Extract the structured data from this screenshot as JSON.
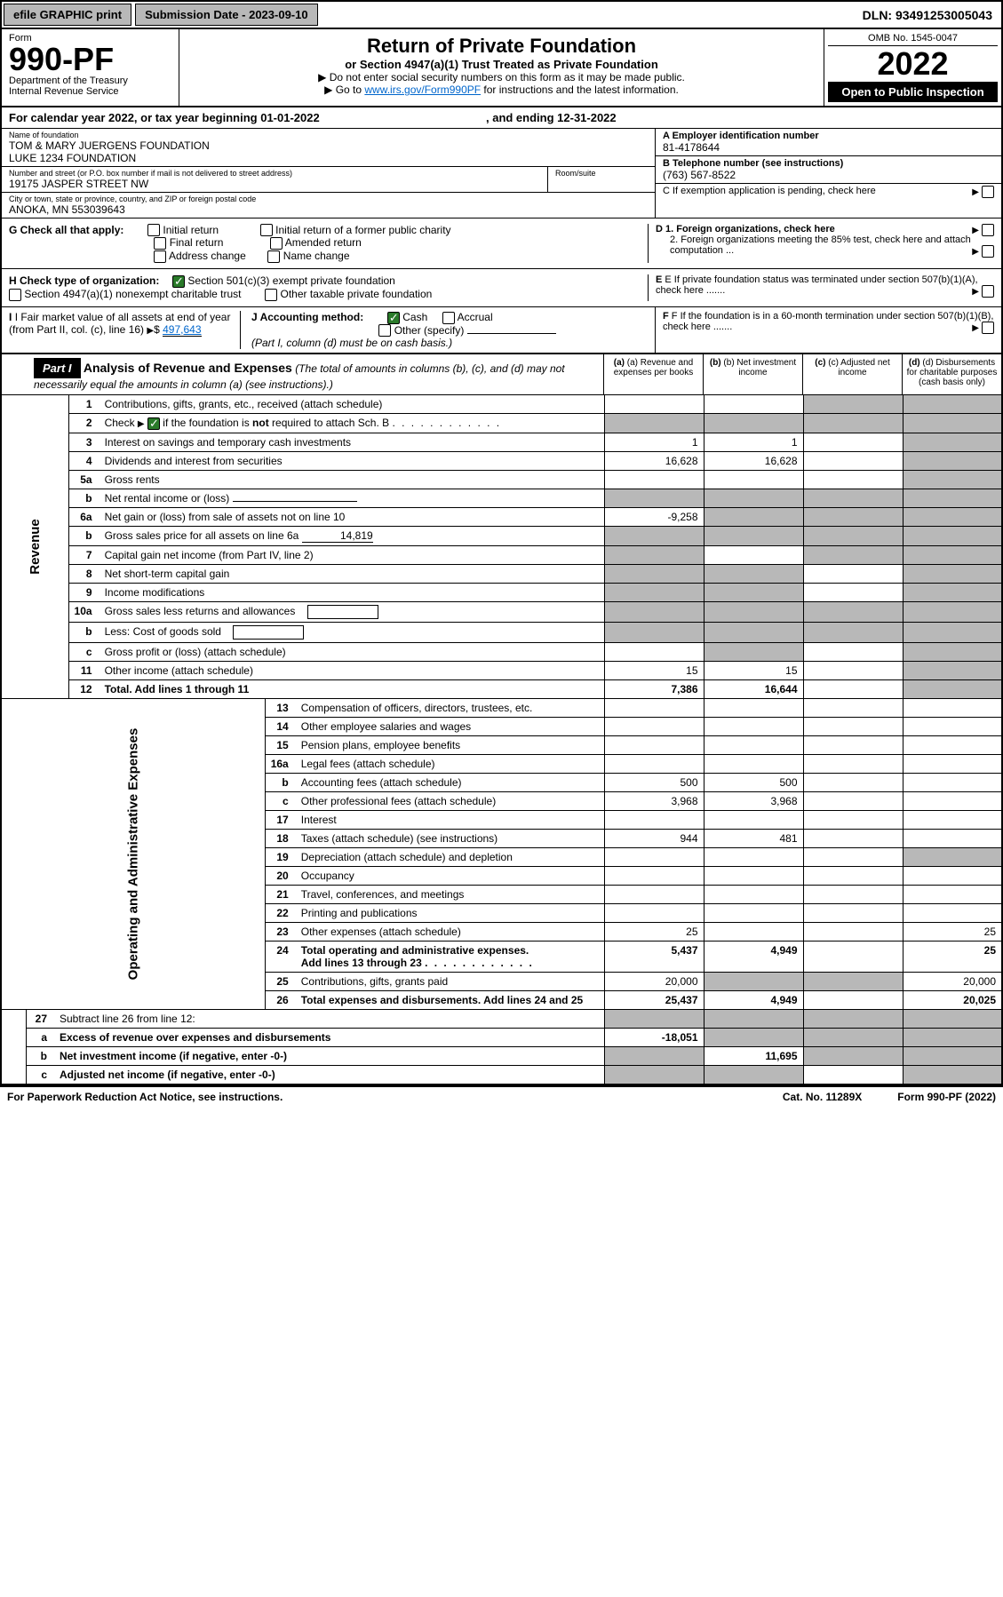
{
  "topbar": {
    "efile": "efile GRAPHIC print",
    "submission": "Submission Date - 2023-09-10",
    "dln": "DLN: 93491253005043"
  },
  "header": {
    "form": "Form",
    "formno": "990-PF",
    "dept": "Department of the Treasury",
    "irs": "Internal Revenue Service",
    "title": "Return of Private Foundation",
    "subtitle": "or Section 4947(a)(1) Trust Treated as Private Foundation",
    "note1": "▶ Do not enter social security numbers on this form as it may be made public.",
    "note2_pre": "▶ Go to ",
    "note2_link": "www.irs.gov/Form990PF",
    "note2_post": " for instructions and the latest information.",
    "omb": "OMB No. 1545-0047",
    "year": "2022",
    "inspect": "Open to Public Inspection"
  },
  "calendar": {
    "text_a": "For calendar year 2022, or tax year beginning 01-01-2022",
    "text_b": ", and ending 12-31-2022"
  },
  "info": {
    "name_lbl": "Name of foundation",
    "name1": "TOM & MARY JUERGENS FOUNDATION",
    "name2": "LUKE 1234 FOUNDATION",
    "addr_lbl": "Number and street (or P.O. box number if mail is not delivered to street address)",
    "addr": "19175 JASPER STREET NW",
    "room_lbl": "Room/suite",
    "city_lbl": "City or town, state or province, country, and ZIP or foreign postal code",
    "city": "ANOKA, MN  553039643",
    "a_lbl": "A Employer identification number",
    "a_val": "81-4178644",
    "b_lbl": "B Telephone number (see instructions)",
    "b_val": "(763) 567-8522",
    "c_lbl": "C If exemption application is pending, check here",
    "d1_lbl": "D 1. Foreign organizations, check here",
    "d2_lbl": "2. Foreign organizations meeting the 85% test, check here and attach computation ...",
    "e_lbl": "E  If private foundation status was terminated under section 507(b)(1)(A), check here .......",
    "f_lbl": "F  If the foundation is in a 60-month termination under section 507(b)(1)(B), check here ......."
  },
  "g": {
    "label": "G Check all that apply:",
    "opts": [
      "Initial return",
      "Final return",
      "Address change",
      "Initial return of a former public charity",
      "Amended return",
      "Name change"
    ]
  },
  "h": {
    "label": "H Check type of organization:",
    "opt1": "Section 501(c)(3) exempt private foundation",
    "opt2": "Section 4947(a)(1) nonexempt charitable trust",
    "opt3": "Other taxable private foundation"
  },
  "i": {
    "label": "I Fair market value of all assets at end of year (from Part II, col. (c), line 16)",
    "val": "497,643"
  },
  "j": {
    "label": "J Accounting method:",
    "cash": "Cash",
    "accrual": "Accrual",
    "other": "Other (specify)",
    "note": "(Part I, column (d) must be on cash basis.)"
  },
  "part1": {
    "label": "Part I",
    "title": "Analysis of Revenue and Expenses",
    "note": "(The total of amounts in columns (b), (c), and (d) may not necessarily equal the amounts in column (a) (see instructions).)",
    "col_a": "(a) Revenue and expenses per books",
    "col_b": "(b) Net investment income",
    "col_c": "(c) Adjusted net income",
    "col_d": "(d) Disbursements for charitable purposes (cash basis only)"
  },
  "sides": {
    "revenue": "Revenue",
    "expenses": "Operating and Administrative Expenses"
  },
  "rows": [
    {
      "n": "1",
      "d": "Contributions, gifts, grants, etc., received (attach schedule)",
      "a": "",
      "b": "",
      "c": "grey",
      "dd": "grey"
    },
    {
      "n": "2",
      "d": "Check ▶ [x] if the foundation is not required to attach Sch. B",
      "a": "grey",
      "b": "grey",
      "c": "grey",
      "dd": "grey",
      "checked": true,
      "bold_word": "not"
    },
    {
      "n": "3",
      "d": "Interest on savings and temporary cash investments",
      "a": "1",
      "b": "1",
      "c": "",
      "dd": "grey"
    },
    {
      "n": "4",
      "d": "Dividends and interest from securities",
      "a": "16,628",
      "b": "16,628",
      "c": "",
      "dd": "grey"
    },
    {
      "n": "5a",
      "d": "Gross rents",
      "a": "",
      "b": "",
      "c": "",
      "dd": "grey"
    },
    {
      "n": "b",
      "d": "Net rental income or (loss)",
      "a": "grey",
      "b": "grey",
      "c": "grey",
      "dd": "grey",
      "underline": true
    },
    {
      "n": "6a",
      "d": "Net gain or (loss) from sale of assets not on line 10",
      "a": "-9,258",
      "b": "grey",
      "c": "grey",
      "dd": "grey"
    },
    {
      "n": "b",
      "d": "Gross sales price for all assets on line 6a",
      "a": "grey",
      "b": "grey",
      "c": "grey",
      "dd": "grey",
      "inline_val": "14,819"
    },
    {
      "n": "7",
      "d": "Capital gain net income (from Part IV, line 2)",
      "a": "grey",
      "b": "",
      "c": "grey",
      "dd": "grey"
    },
    {
      "n": "8",
      "d": "Net short-term capital gain",
      "a": "grey",
      "b": "grey",
      "c": "",
      "dd": "grey"
    },
    {
      "n": "9",
      "d": "Income modifications",
      "a": "grey",
      "b": "grey",
      "c": "",
      "dd": "grey"
    },
    {
      "n": "10a",
      "d": "Gross sales less returns and allowances",
      "a": "grey",
      "b": "grey",
      "c": "grey",
      "dd": "grey",
      "box": true
    },
    {
      "n": "b",
      "d": "Less: Cost of goods sold",
      "a": "grey",
      "b": "grey",
      "c": "grey",
      "dd": "grey",
      "box": true
    },
    {
      "n": "c",
      "d": "Gross profit or (loss) (attach schedule)",
      "a": "",
      "b": "grey",
      "c": "",
      "dd": "grey"
    },
    {
      "n": "11",
      "d": "Other income (attach schedule)",
      "a": "15",
      "b": "15",
      "c": "",
      "dd": "grey"
    },
    {
      "n": "12",
      "d": "Total. Add lines 1 through 11",
      "a": "7,386",
      "b": "16,644",
      "c": "",
      "dd": "grey",
      "bold": true
    }
  ],
  "exp_rows": [
    {
      "n": "13",
      "d": "Compensation of officers, directors, trustees, etc.",
      "a": "",
      "b": "",
      "c": "",
      "dd": ""
    },
    {
      "n": "14",
      "d": "Other employee salaries and wages",
      "a": "",
      "b": "",
      "c": "",
      "dd": ""
    },
    {
      "n": "15",
      "d": "Pension plans, employee benefits",
      "a": "",
      "b": "",
      "c": "",
      "dd": ""
    },
    {
      "n": "16a",
      "d": "Legal fees (attach schedule)",
      "a": "",
      "b": "",
      "c": "",
      "dd": ""
    },
    {
      "n": "b",
      "d": "Accounting fees (attach schedule)",
      "a": "500",
      "b": "500",
      "c": "",
      "dd": ""
    },
    {
      "n": "c",
      "d": "Other professional fees (attach schedule)",
      "a": "3,968",
      "b": "3,968",
      "c": "",
      "dd": ""
    },
    {
      "n": "17",
      "d": "Interest",
      "a": "",
      "b": "",
      "c": "",
      "dd": ""
    },
    {
      "n": "18",
      "d": "Taxes (attach schedule) (see instructions)",
      "a": "944",
      "b": "481",
      "c": "",
      "dd": ""
    },
    {
      "n": "19",
      "d": "Depreciation (attach schedule) and depletion",
      "a": "",
      "b": "",
      "c": "",
      "dd": "grey"
    },
    {
      "n": "20",
      "d": "Occupancy",
      "a": "",
      "b": "",
      "c": "",
      "dd": ""
    },
    {
      "n": "21",
      "d": "Travel, conferences, and meetings",
      "a": "",
      "b": "",
      "c": "",
      "dd": ""
    },
    {
      "n": "22",
      "d": "Printing and publications",
      "a": "",
      "b": "",
      "c": "",
      "dd": ""
    },
    {
      "n": "23",
      "d": "Other expenses (attach schedule)",
      "a": "25",
      "b": "",
      "c": "",
      "dd": "25"
    },
    {
      "n": "24",
      "d": "Total operating and administrative expenses. Add lines 13 through 23",
      "a": "5,437",
      "b": "4,949",
      "c": "",
      "dd": "25",
      "bold": true,
      "twoline": true
    },
    {
      "n": "25",
      "d": "Contributions, gifts, grants paid",
      "a": "20,000",
      "b": "grey",
      "c": "grey",
      "dd": "20,000"
    },
    {
      "n": "26",
      "d": "Total expenses and disbursements. Add lines 24 and 25",
      "a": "25,437",
      "b": "4,949",
      "c": "",
      "dd": "20,025",
      "bold": true
    }
  ],
  "final_rows": [
    {
      "n": "27",
      "d": "Subtract line 26 from line 12:",
      "a": "grey",
      "b": "grey",
      "c": "grey",
      "dd": "grey"
    },
    {
      "n": "a",
      "d": "Excess of revenue over expenses and disbursements",
      "a": "-18,051",
      "b": "grey",
      "c": "grey",
      "dd": "grey",
      "bold": true
    },
    {
      "n": "b",
      "d": "Net investment income (if negative, enter -0-)",
      "a": "grey",
      "b": "11,695",
      "c": "grey",
      "dd": "grey",
      "bold": true
    },
    {
      "n": "c",
      "d": "Adjusted net income (if negative, enter -0-)",
      "a": "grey",
      "b": "grey",
      "c": "",
      "dd": "grey",
      "bold": true
    }
  ],
  "footer": {
    "left": "For Paperwork Reduction Act Notice, see instructions.",
    "mid": "Cat. No. 11289X",
    "right": "Form 990-PF (2022)"
  }
}
